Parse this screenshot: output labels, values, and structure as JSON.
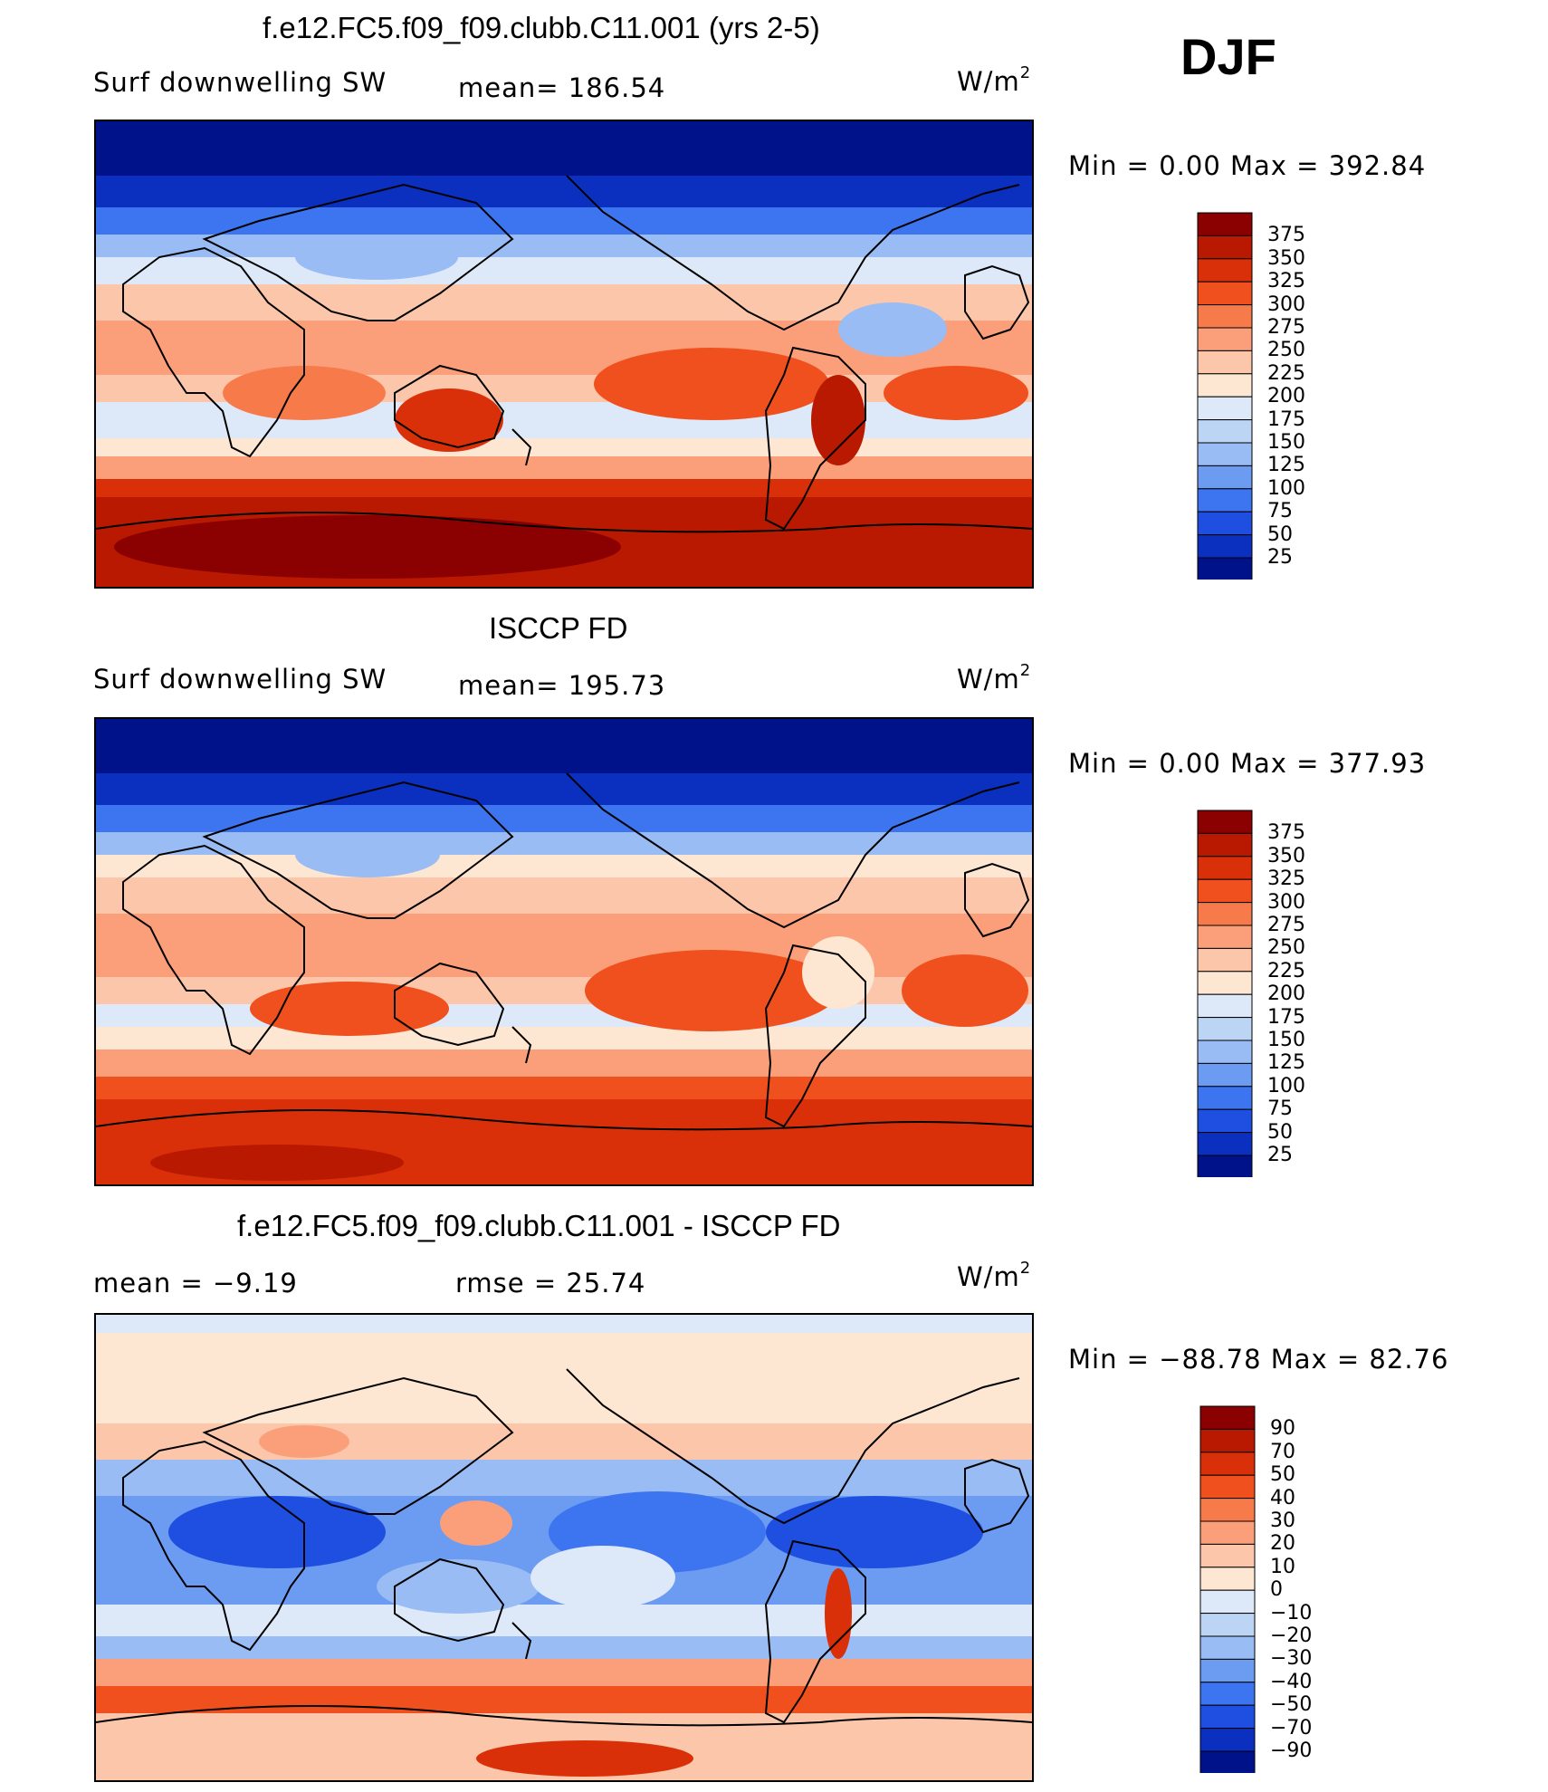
{
  "season": "DJF",
  "chart_data": [
    {
      "type": "heatmap",
      "title": "f.e12.FC5.f09_f09.clubb.C11.001 (yrs 2-5)",
      "variable": "Surf downwelling SW",
      "mean_label": "mean=  186.54",
      "units": "W/m",
      "units_sup": "2",
      "minmax_label": "Min  =     0.00  Max  =  392.84",
      "min": 0.0,
      "max": 392.84,
      "mean": 186.54,
      "colorbar_levels": [
        "375",
        "350",
        "325",
        "300",
        "275",
        "250",
        "225",
        "200",
        "175",
        "150",
        "125",
        "100",
        "75",
        "50",
        "25"
      ],
      "colorbar_colors": [
        "#8b0000",
        "#b81900",
        "#d9300a",
        "#f0501e",
        "#f77a4a",
        "#fb9f7a",
        "#fcc6ab",
        "#fde6d2",
        "#dde9f8",
        "#bcd5f5",
        "#98bcf3",
        "#6c9bf2",
        "#3d74f0",
        "#1f4fe0",
        "#0b2fbf",
        "#00128a"
      ],
      "description": "Model surface downwelling shortwave radiation, DJF"
    },
    {
      "type": "heatmap",
      "title": "ISCCP FD",
      "variable": "Surf downwelling SW",
      "mean_label": "mean=  195.73",
      "units": "W/m",
      "units_sup": "2",
      "minmax_label": "Min  =     0.00  Max  =  377.93",
      "min": 0.0,
      "max": 377.93,
      "mean": 195.73,
      "colorbar_levels": [
        "375",
        "350",
        "325",
        "300",
        "275",
        "250",
        "225",
        "200",
        "175",
        "150",
        "125",
        "100",
        "75",
        "50",
        "25"
      ],
      "colorbar_colors": [
        "#8b0000",
        "#b81900",
        "#d9300a",
        "#f0501e",
        "#f77a4a",
        "#fb9f7a",
        "#fcc6ab",
        "#fde6d2",
        "#dde9f8",
        "#bcd5f5",
        "#98bcf3",
        "#6c9bf2",
        "#3d74f0",
        "#1f4fe0",
        "#0b2fbf",
        "#00128a"
      ],
      "description": "Observed surface downwelling shortwave radiation, DJF"
    },
    {
      "type": "heatmap",
      "title": "f.e12.FC5.f09_f09.clubb.C11.001 - ISCCP FD",
      "mean_label": "mean  =    −9.19",
      "rmse_label": "rmse  =    25.74",
      "units": "W/m",
      "units_sup": "2",
      "minmax_label": "Min  =  −88.78  Max  =   82.76",
      "min": -88.78,
      "max": 82.76,
      "mean": -9.19,
      "rmse": 25.74,
      "colorbar_levels": [
        "90",
        "70",
        "50",
        "40",
        "30",
        "20",
        "10",
        "0",
        "−10",
        "−20",
        "−30",
        "−40",
        "−50",
        "−70",
        "−90"
      ],
      "colorbar_colors": [
        "#8b0000",
        "#b81900",
        "#d9300a",
        "#f0501e",
        "#f77a4a",
        "#fb9f7a",
        "#fcc6ab",
        "#fde6d2",
        "#dde9f8",
        "#bcd5f5",
        "#98bcf3",
        "#6c9bf2",
        "#3d74f0",
        "#1f4fe0",
        "#0b2fbf",
        "#00128a"
      ],
      "description": "Difference model minus observations"
    }
  ]
}
